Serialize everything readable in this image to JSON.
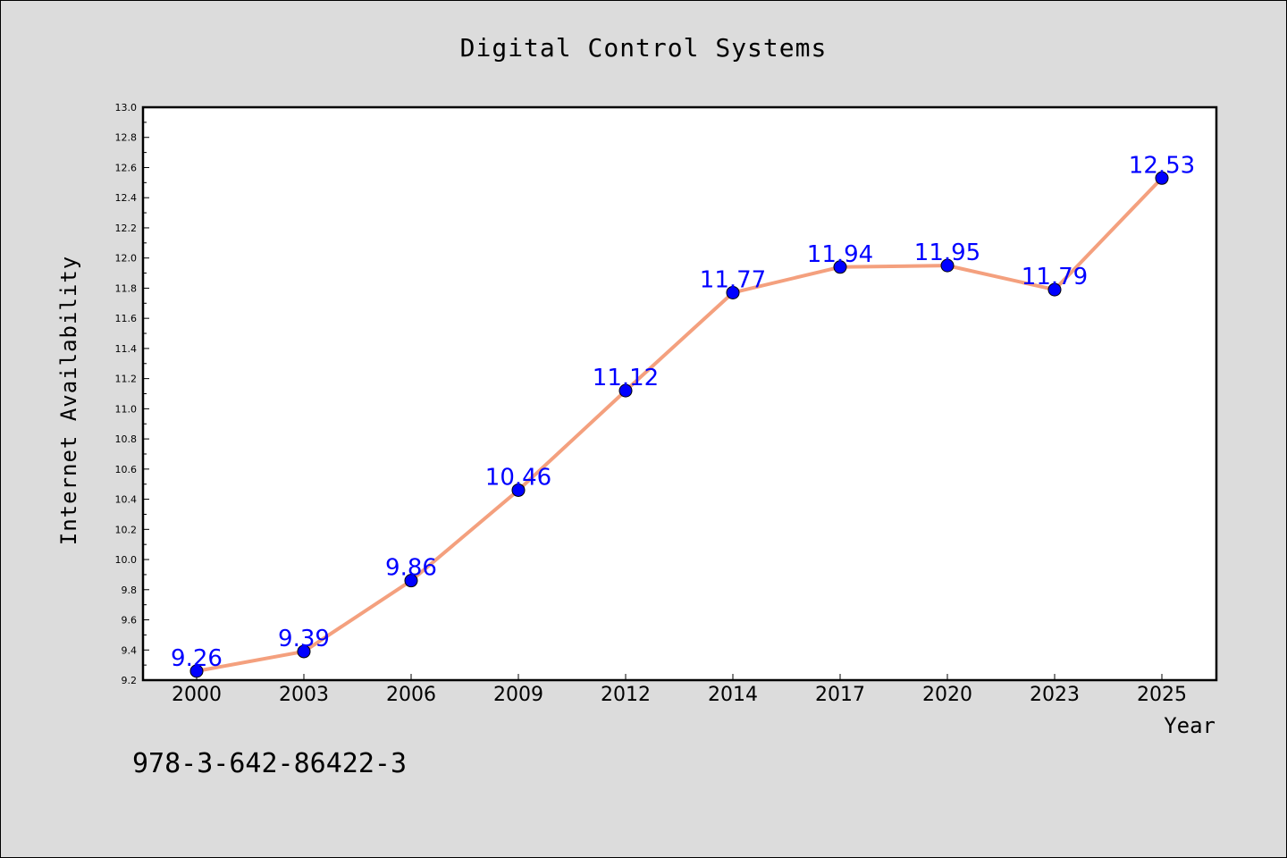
{
  "chart_data": {
    "type": "line",
    "title": "Digital Control Systems",
    "xlabel": "Year",
    "ylabel": "Internet Availability",
    "categories": [
      "2000",
      "2003",
      "2006",
      "2009",
      "2012",
      "2014",
      "2017",
      "2020",
      "2023",
      "2025"
    ],
    "values": [
      9.26,
      9.39,
      9.86,
      10.46,
      11.12,
      11.77,
      11.94,
      11.95,
      11.79,
      12.53
    ],
    "data_labels": [
      "9.26",
      "9.39",
      "9.86",
      "10.46",
      "11.12",
      "11.77",
      "11.94",
      "11.95",
      "11.79",
      "12.53"
    ],
    "ylim": [
      9.2,
      13.0
    ],
    "y_ticks": [
      "9.2",
      "9.4",
      "9.6",
      "9.8",
      "10.0",
      "10.2",
      "10.4",
      "10.6",
      "10.8",
      "11.0",
      "11.2",
      "11.4",
      "11.6",
      "11.8",
      "12.0",
      "12.2",
      "12.4",
      "12.6",
      "12.8",
      "13.0"
    ],
    "grid": false,
    "line_color": "#f4a07e",
    "marker_color": "#0000ff",
    "label_color": "#0000ff",
    "plot_background": "#ffffff",
    "page_background": "#dcdcdc"
  },
  "footer": {
    "isbn": "978-3-642-86422-3"
  }
}
